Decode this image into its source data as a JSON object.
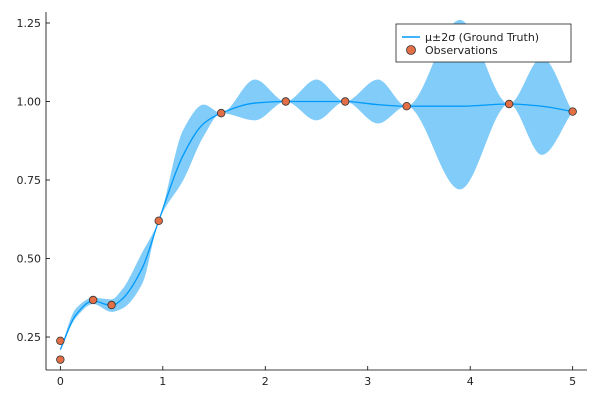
{
  "chart_data": {
    "type": "line",
    "title": "",
    "xlabel": "",
    "ylabel": "",
    "xlim": [
      -0.14,
      5.14
    ],
    "ylim": [
      0.145,
      1.285
    ],
    "grid": false,
    "legend_position": "top-right",
    "xticks": [
      0,
      1,
      2,
      3,
      4,
      5
    ],
    "xtick_labels": [
      "0",
      "1",
      "2",
      "3",
      "4",
      "5"
    ],
    "yticks": [
      0.25,
      0.5,
      0.75,
      1.0,
      1.25
    ],
    "ytick_labels": [
      "0.25",
      "0.50",
      "0.75",
      "1.00",
      "1.25"
    ],
    "colors": {
      "mean": "#009AFA",
      "band": "#82CCFA",
      "points": "#E26F46",
      "axis": "#000000"
    },
    "series": [
      {
        "name": "μ±2σ (Ground Truth)",
        "kind": "line_with_band",
        "x": [
          0,
          0.15,
          0.32,
          0.5,
          0.6,
          0.8,
          0.96,
          1.2,
          1.4,
          1.57,
          1.9,
          2.2,
          2.5,
          2.78,
          3.1,
          3.38,
          3.9,
          4.38,
          4.7,
          5.0
        ],
        "mean": [
          0.21,
          0.32,
          0.365,
          0.35,
          0.37,
          0.47,
          0.62,
          0.83,
          0.93,
          0.963,
          0.995,
          1.0,
          1.0,
          1.0,
          0.99,
          0.985,
          0.985,
          0.992,
          0.985,
          0.968
        ],
        "lower": [
          0.21,
          0.31,
          0.355,
          0.33,
          0.34,
          0.42,
          0.62,
          0.75,
          0.89,
          0.963,
          0.94,
          1.0,
          0.94,
          1.0,
          0.93,
          0.985,
          0.72,
          0.992,
          0.83,
          0.968
        ],
        "upper": [
          0.21,
          0.34,
          0.375,
          0.37,
          0.4,
          0.52,
          0.62,
          0.91,
          0.99,
          0.963,
          1.07,
          1.0,
          1.07,
          1.0,
          1.07,
          0.985,
          1.26,
          0.992,
          1.14,
          0.968
        ]
      },
      {
        "name": "Observations",
        "kind": "scatter",
        "x": [
          0.0,
          0.0,
          0.32,
          0.5,
          0.96,
          1.57,
          2.2,
          2.78,
          3.38,
          4.38,
          5.0
        ],
        "y": [
          0.178,
          0.238,
          0.368,
          0.352,
          0.62,
          0.963,
          1.0,
          1.0,
          0.985,
          0.992,
          0.968
        ]
      }
    ]
  }
}
